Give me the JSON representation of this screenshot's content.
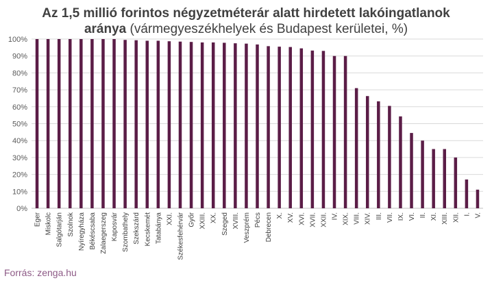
{
  "chart_data": {
    "type": "bar",
    "title_bold_line1": "Az 1,5 millió forintos négyzetméterár alatt hirdetett lakóingatlanok",
    "title_bold_line2": "aránya",
    "title_rest_line2": " (vármegyeszékhelyek és Budapest kerületei, %)",
    "categories": [
      "Eger",
      "Miskolc",
      "Salgótarján",
      "Szolnok",
      "Nyíregyháza",
      "Békéscsaba",
      "Zalaegerszeg",
      "Kaposvár",
      "Szombathely",
      "Szekszárd",
      "Kecskemét",
      "Tatabánya",
      "XXI.",
      "Székesfehérvár",
      "Győr",
      "XXIII.",
      "XX.",
      "Szeged",
      "XVIII.",
      "Veszprém",
      "Pécs",
      "Debrecen",
      "X.",
      "XV.",
      "XVI.",
      "XVII.",
      "XXII.",
      "IV.",
      "XIX.",
      "VIII.",
      "XIV.",
      "III.",
      "VII.",
      "IX.",
      "VI.",
      "II.",
      "XI.",
      "XIII.",
      "XII.",
      "I.",
      "V."
    ],
    "values": [
      100,
      100,
      100,
      100,
      100,
      100,
      100,
      100,
      99.5,
      99.3,
      99,
      99,
      98.7,
      98.5,
      98.3,
      98,
      98,
      97.8,
      97.5,
      97.3,
      96.8,
      95.8,
      95.5,
      95.3,
      94.5,
      93.2,
      93,
      90,
      90,
      71,
      66.3,
      63.2,
      60.5,
      54.3,
      44.5,
      40,
      35,
      35,
      30,
      17,
      11
    ],
    "y_ticks": [
      "0%",
      "10%",
      "20%",
      "30%",
      "40%",
      "50%",
      "60%",
      "70%",
      "80%",
      "90%",
      "100%"
    ],
    "ylim": [
      0,
      100
    ],
    "bar_color": "#5b1d47",
    "grid": true
  },
  "source": "Forrás: zenga.hu"
}
